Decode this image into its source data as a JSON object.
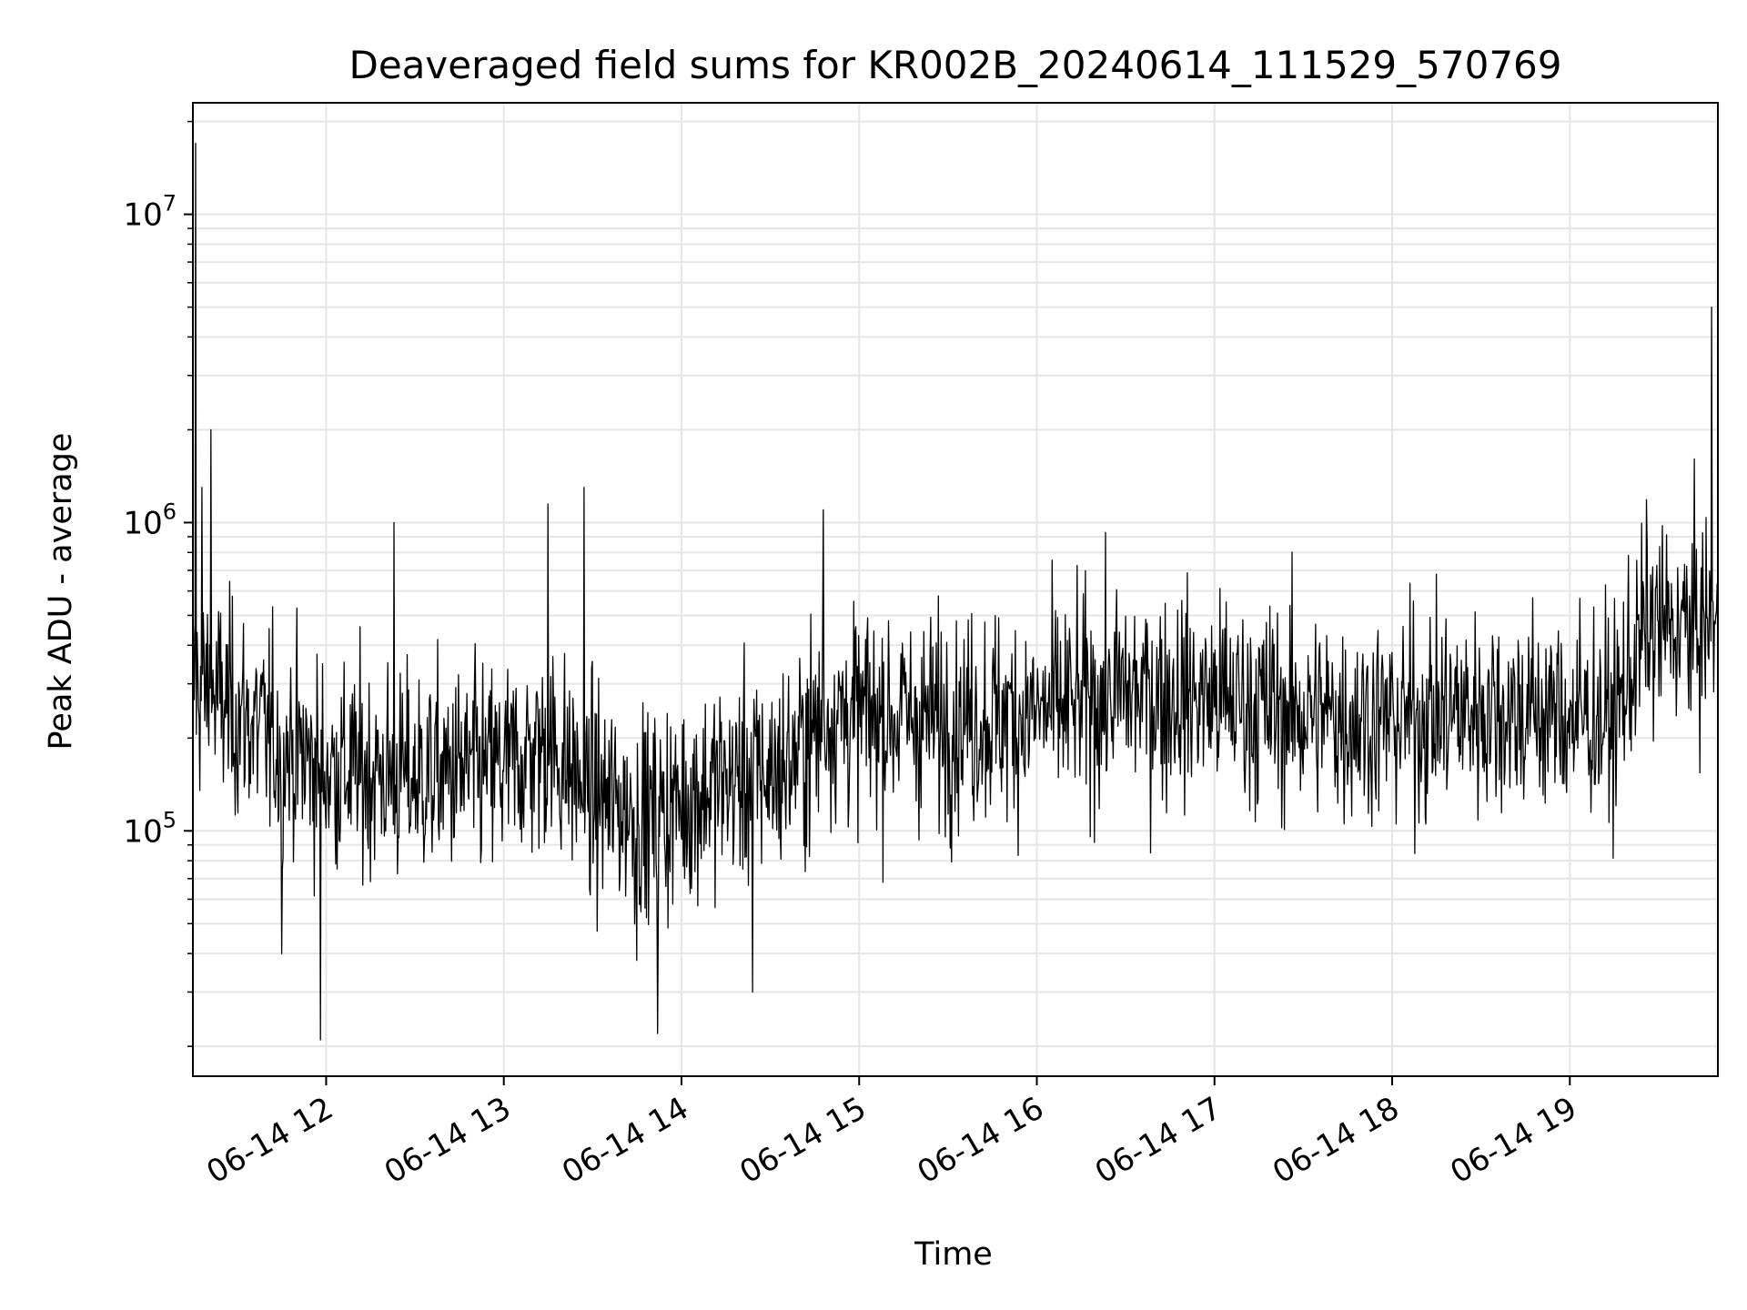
{
  "chart_data": {
    "type": "line",
    "title": "Deaveraged field sums for KR002B_20240614_111529_570769",
    "xlabel": "Time",
    "ylabel": "Peak ADU - average",
    "yscale": "log",
    "ylim": [
      16000,
      23000000
    ],
    "xlim": [
      "06-14 11:15",
      "06-14 19:50"
    ],
    "grid": true,
    "line_color": "#000000",
    "y_ticks": [
      {
        "base": "10",
        "exp": "5",
        "value": 100000
      },
      {
        "base": "10",
        "exp": "6",
        "value": 1000000
      },
      {
        "base": "10",
        "exp": "7",
        "value": 10000000
      }
    ],
    "x_ticks": [
      "06-14 12",
      "06-14 13",
      "06-14 14",
      "06-14 15",
      "06-14 16",
      "06-14 17",
      "06-14 18",
      "06-14 19"
    ],
    "x_tick_times": [
      "06-14 12:00",
      "06-14 13:00",
      "06-14 14:00",
      "06-14 15:00",
      "06-14 16:00",
      "06-14 17:00",
      "06-14 18:00",
      "06-14 19:00"
    ],
    "series": [
      {
        "x_start": "06-14 11:15",
        "x_end": "06-14 19:50",
        "approx_points": 2200,
        "baseline": [
          {
            "x": "06-14 11:15",
            "y": 300000
          },
          {
            "x": "06-14 11:30",
            "y": 240000
          },
          {
            "x": "06-14 11:45",
            "y": 190000
          },
          {
            "x": "06-14 12:00",
            "y": 160000
          },
          {
            "x": "06-14 12:30",
            "y": 150000
          },
          {
            "x": "06-14 13:00",
            "y": 160000
          },
          {
            "x": "06-14 13:15",
            "y": 190000
          },
          {
            "x": "06-14 13:30",
            "y": 130000
          },
          {
            "x": "06-14 13:50",
            "y": 110000
          },
          {
            "x": "06-14 14:10",
            "y": 140000
          },
          {
            "x": "06-14 14:35",
            "y": 160000
          },
          {
            "x": "06-14 14:50",
            "y": 240000
          },
          {
            "x": "06-14 15:30",
            "y": 230000
          },
          {
            "x": "06-14 16:00",
            "y": 240000
          },
          {
            "x": "06-14 16:30",
            "y": 280000
          },
          {
            "x": "06-14 17:00",
            "y": 270000
          },
          {
            "x": "06-14 17:30",
            "y": 240000
          },
          {
            "x": "06-14 18:00",
            "y": 230000
          },
          {
            "x": "06-14 18:30",
            "y": 250000
          },
          {
            "x": "06-14 19:15",
            "y": 230000
          },
          {
            "x": "06-14 19:25",
            "y": 450000
          },
          {
            "x": "06-14 19:50",
            "y": 460000
          }
        ],
        "spikes": [
          {
            "x": "06-14 11:16",
            "y": 17000000
          },
          {
            "x": "06-14 11:18",
            "y": 1300000
          },
          {
            "x": "06-14 11:21",
            "y": 2000000
          },
          {
            "x": "06-14 12:23",
            "y": 1000000
          },
          {
            "x": "06-14 13:15",
            "y": 1150000
          },
          {
            "x": "06-14 13:27",
            "y": 1300000
          },
          {
            "x": "06-14 14:48",
            "y": 1100000
          },
          {
            "x": "06-14 19:48",
            "y": 5000000
          },
          {
            "x": "06-14 11:58",
            "y": 21000
          },
          {
            "x": "06-14 13:52",
            "y": 22000
          },
          {
            "x": "06-14 14:24",
            "y": 30000
          },
          {
            "x": "06-14 11:45",
            "y": 40000
          },
          {
            "x": "06-14 13:45",
            "y": 38000
          }
        ]
      }
    ]
  }
}
